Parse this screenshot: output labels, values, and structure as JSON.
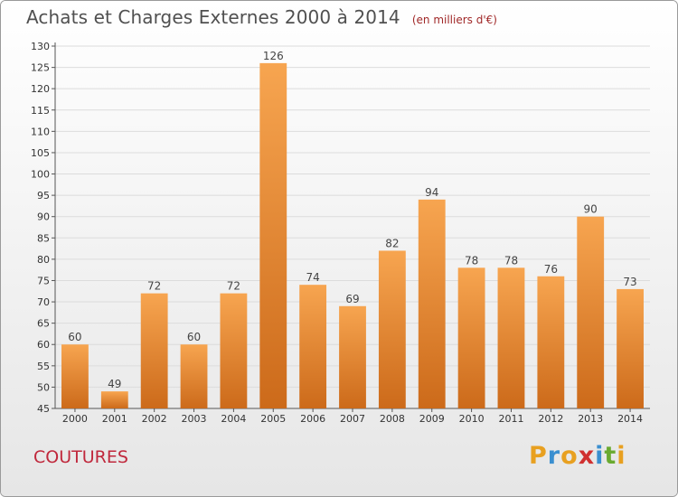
{
  "header": {
    "title": "Achats et Charges Externes 2000 à 2014",
    "unit": "(en milliers d'€)"
  },
  "footer": {
    "commune": "COUTURES",
    "logo_letters": [
      "P",
      "r",
      "o",
      "x",
      "i",
      "t",
      "i"
    ],
    "logo_colors": [
      "#e8a020",
      "#3a8fd0",
      "#e8a020",
      "#d03030",
      "#3a8fd0",
      "#6aaa30",
      "#e8a020"
    ]
  },
  "chart_data": {
    "type": "bar",
    "categories": [
      "2000",
      "2001",
      "2002",
      "2003",
      "2004",
      "2005",
      "2006",
      "2007",
      "2008",
      "2009",
      "2010",
      "2011",
      "2012",
      "2013",
      "2014"
    ],
    "values": [
      60,
      49,
      72,
      60,
      72,
      126,
      74,
      69,
      82,
      94,
      78,
      78,
      76,
      90,
      73
    ],
    "title": "Achats et Charges Externes 2000 à 2014",
    "xlabel": "",
    "ylabel": "",
    "ylim": [
      45,
      130
    ],
    "yticks": [
      45,
      50,
      55,
      60,
      65,
      70,
      75,
      80,
      85,
      90,
      95,
      100,
      105,
      110,
      115,
      120,
      125,
      130
    ],
    "grid": true,
    "data_labels": true,
    "colors": {
      "bar_top": "#f7a550",
      "bar_bottom": "#cc6a1a",
      "grid": "#dcdcdc",
      "background_top": "#ffffff",
      "background_bottom": "#e6e6e6"
    }
  }
}
